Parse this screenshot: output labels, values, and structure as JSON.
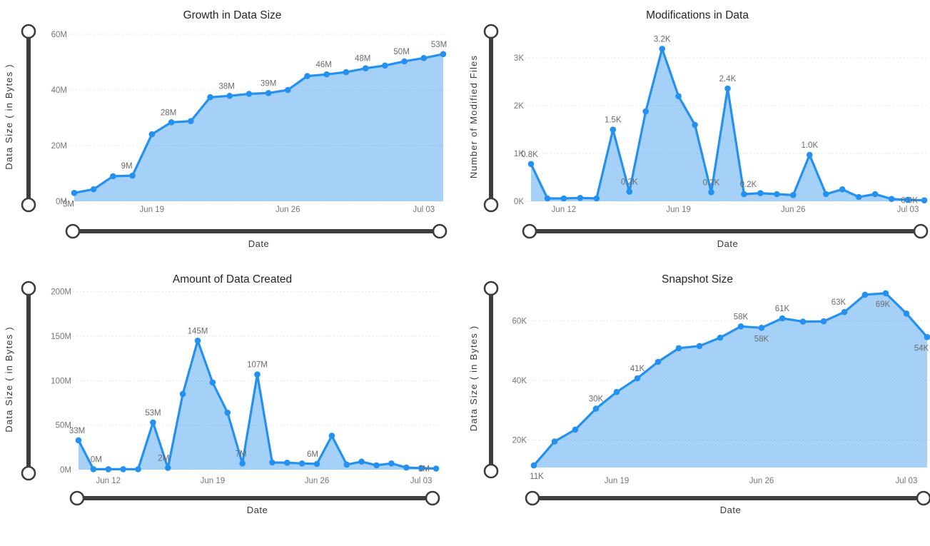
{
  "style": {
    "line_color": "#2490EF",
    "area_fill": "rgba(36,144,239,0.41)",
    "slider_color": "#3e3d3b",
    "grid_color": "#dcdcdc",
    "title_color": "#252423",
    "tick_color": "#777675",
    "data_label_color": "#6d6b68",
    "axis_title_color": "#3a3938"
  },
  "chart_data": [
    {
      "type": "area",
      "title": "Growth in Data Size",
      "xlabel": "Date",
      "ylabel": "Data Size ( in Bytes )",
      "unit": "M",
      "legend": "none",
      "grid": "horizontal-dotted",
      "x": [
        "Jun 15",
        "Jun 16",
        "Jun 17",
        "Jun 18",
        "Jun 19",
        "Jun 20",
        "Jun 21",
        "Jun 22",
        "Jun 23",
        "Jun 24",
        "Jun 25",
        "Jun 26",
        "Jun 27",
        "Jun 28",
        "Jun 29",
        "Jun 30",
        "Jul 01",
        "Jul 02",
        "Jul 03",
        "Jul 04"
      ],
      "values": [
        3,
        4.3,
        9,
        9.2,
        24.1,
        28.4,
        28.8,
        37.4,
        37.9,
        38.6,
        38.9,
        40,
        45,
        45.6,
        46.4,
        47.8,
        48.8,
        50.3,
        51.5,
        52.9
      ],
      "ylim": [
        0,
        60.8
      ],
      "y_ticks": [
        {
          "v": 0,
          "label": "0M"
        },
        {
          "v": 20,
          "label": "20M"
        },
        {
          "v": 40,
          "label": "40M"
        },
        {
          "v": 60,
          "label": "60M"
        }
      ],
      "x_tick_idx": [
        4,
        11,
        18
      ],
      "point_labels": [
        {
          "i": 0,
          "text": "3M",
          "pos": "below",
          "dx": -8
        },
        {
          "i": 3,
          "text": "9M",
          "pos": "above",
          "dx": -8
        },
        {
          "i": 5,
          "text": "28M",
          "pos": "above",
          "dx": -4
        },
        {
          "i": 8,
          "text": "38M",
          "pos": "above",
          "dx": -4
        },
        {
          "i": 10,
          "text": "39M",
          "pos": "above",
          "dx": 0
        },
        {
          "i": 13,
          "text": "46M",
          "pos": "above",
          "dx": -4
        },
        {
          "i": 15,
          "text": "48M",
          "pos": "above",
          "dx": -4
        },
        {
          "i": 17,
          "text": "50M",
          "pos": "above",
          "dx": -4
        },
        {
          "i": 19,
          "text": "53M",
          "pos": "above",
          "dx": -6
        }
      ]
    },
    {
      "type": "area",
      "title": "Modifications in Data",
      "xlabel": "Date",
      "ylabel": "Number of Modified Files",
      "unit": "K",
      "legend": "none",
      "grid": "horizontal-dotted",
      "x": [
        "Jun 10",
        "Jun 11",
        "Jun 12",
        "Jun 13",
        "Jun 14",
        "Jun 15",
        "Jun 16",
        "Jun 17",
        "Jun 18",
        "Jun 19",
        "Jun 20",
        "Jun 21",
        "Jun 22",
        "Jun 23",
        "Jun 24",
        "Jun 25",
        "Jun 26",
        "Jun 27",
        "Jun 28",
        "Jun 29",
        "Jun 30",
        "Jul 01",
        "Jul 02",
        "Jul 03",
        "Jul 04"
      ],
      "values": [
        0.78,
        0.06,
        0.06,
        0.07,
        0.06,
        1.5,
        0.2,
        1.88,
        3.19,
        2.2,
        1.6,
        0.19,
        2.36,
        0.15,
        0.17,
        0.15,
        0.13,
        0.97,
        0.15,
        0.25,
        0.09,
        0.15,
        0.05,
        0.03,
        0.02
      ],
      "ylim": [
        0,
        3.54
      ],
      "y_ticks": [
        {
          "v": 0,
          "label": "0K"
        },
        {
          "v": 1,
          "label": "1K"
        },
        {
          "v": 2,
          "label": "2K"
        },
        {
          "v": 3,
          "label": "3K"
        }
      ],
      "x_tick_idx": [
        2,
        9,
        16,
        23
      ],
      "point_labels": [
        {
          "i": 0,
          "text": "0.8K",
          "pos": "above",
          "dx": -2
        },
        {
          "i": 5,
          "text": "1.5K",
          "pos": "above",
          "dx": 0
        },
        {
          "i": 6,
          "text": "0.2K",
          "pos": "above",
          "dx": 0
        },
        {
          "i": 8,
          "text": "3.2K",
          "pos": "above",
          "dx": 0
        },
        {
          "i": 11,
          "text": "0.2K",
          "pos": "above",
          "dx": 0
        },
        {
          "i": 12,
          "text": "2.4K",
          "pos": "above",
          "dx": 0
        },
        {
          "i": 13,
          "text": "0.2K",
          "pos": "above",
          "dx": 6
        },
        {
          "i": 17,
          "text": "1.0K",
          "pos": "above",
          "dx": 0
        },
        {
          "i": 24,
          "text": "0.0K",
          "pos": "left"
        }
      ]
    },
    {
      "type": "area",
      "title": "Amount of Data Created",
      "xlabel": "Date",
      "ylabel": "Data Size ( in Bytes )",
      "unit": "M",
      "legend": "none",
      "grid": "horizontal-dotted",
      "x": [
        "Jun 10",
        "Jun 11",
        "Jun 12",
        "Jun 13",
        "Jun 14",
        "Jun 15",
        "Jun 16",
        "Jun 17",
        "Jun 18",
        "Jun 19",
        "Jun 20",
        "Jun 21",
        "Jun 22",
        "Jun 23",
        "Jun 24",
        "Jun 25",
        "Jun 26",
        "Jun 27",
        "Jun 28",
        "Jun 29",
        "Jun 30",
        "Jul 01",
        "Jul 02",
        "Jul 03",
        "Jul 04"
      ],
      "values": [
        33,
        0.5,
        0.5,
        0.5,
        0.5,
        53,
        2,
        85,
        145,
        98,
        64,
        7,
        107,
        8,
        7.8,
        7,
        6.5,
        38,
        5.7,
        9,
        4.9,
        7,
        2.3,
        1.8,
        1.2
      ],
      "ylim": [
        0,
        203
      ],
      "y_ticks": [
        {
          "v": 0,
          "label": "0M"
        },
        {
          "v": 50,
          "label": "50M"
        },
        {
          "v": 100,
          "label": "100M"
        },
        {
          "v": 150,
          "label": "150M"
        },
        {
          "v": 200,
          "label": "200M"
        }
      ],
      "x_tick_idx": [
        2,
        9,
        16,
        23
      ],
      "point_labels": [
        {
          "i": 0,
          "text": "33M",
          "pos": "above",
          "dx": -2
        },
        {
          "i": 1,
          "text": "0M",
          "pos": "above",
          "dx": 4
        },
        {
          "i": 5,
          "text": "53M",
          "pos": "above",
          "dx": 0
        },
        {
          "i": 6,
          "text": "2M",
          "pos": "above",
          "dx": -6
        },
        {
          "i": 8,
          "text": "145M",
          "pos": "above",
          "dx": 0
        },
        {
          "i": 11,
          "text": "7M",
          "pos": "above",
          "dx": -2
        },
        {
          "i": 12,
          "text": "107M",
          "pos": "above",
          "dx": 0
        },
        {
          "i": 16,
          "text": "6M",
          "pos": "above",
          "dx": -6
        },
        {
          "i": 24,
          "text": "1M",
          "pos": "left"
        }
      ]
    },
    {
      "type": "area",
      "title": "Snapshot Size",
      "xlabel": "Date",
      "ylabel": "Data Size ( in Bytes )",
      "unit": "K",
      "legend": "none",
      "grid": "horizontal-dotted",
      "x": [
        "Jun 15",
        "Jun 16",
        "Jun 17",
        "Jun 18",
        "Jun 19",
        "Jun 20",
        "Jun 21",
        "Jun 22",
        "Jun 23",
        "Jun 24",
        "Jun 25",
        "Jun 26",
        "Jun 27",
        "Jun 28",
        "Jun 29",
        "Jun 30",
        "Jul 01",
        "Jul 02",
        "Jul 03",
        "Jul 04"
      ],
      "values": [
        11.5,
        19.5,
        23.5,
        30.5,
        36.1,
        40.7,
        46.2,
        50.8,
        51.5,
        54.3,
        58.1,
        57.6,
        60.8,
        59.7,
        59.8,
        62.9,
        68.7,
        69.2,
        62.4,
        54.5
      ],
      "ylim": [
        10.8,
        70.6
      ],
      "y_ticks": [
        {
          "v": 20,
          "label": "20K"
        },
        {
          "v": 40,
          "label": "40K"
        },
        {
          "v": 60,
          "label": "60K"
        }
      ],
      "x_tick_idx": [
        4,
        11,
        18
      ],
      "point_labels": [
        {
          "i": 0,
          "text": "11K",
          "pos": "below",
          "dx": 4
        },
        {
          "i": 3,
          "text": "30K",
          "pos": "above",
          "dx": 0
        },
        {
          "i": 5,
          "text": "41K",
          "pos": "above",
          "dx": 0
        },
        {
          "i": 10,
          "text": "58K",
          "pos": "above",
          "dx": 0
        },
        {
          "i": 11,
          "text": "58K",
          "pos": "below",
          "dx": 0
        },
        {
          "i": 12,
          "text": "61K",
          "pos": "above",
          "dx": 0
        },
        {
          "i": 15,
          "text": "63K",
          "pos": "above",
          "dx": -8
        },
        {
          "i": 17,
          "text": "69K",
          "pos": "below",
          "dx": -4
        },
        {
          "i": 19,
          "text": "54K",
          "pos": "below",
          "dx": -8
        }
      ]
    }
  ]
}
